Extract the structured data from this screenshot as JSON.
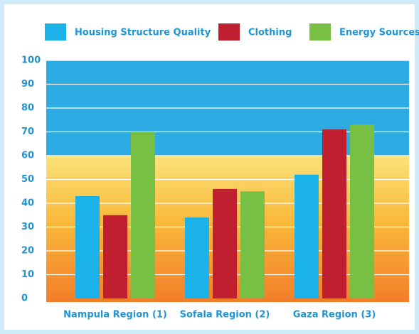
{
  "chart_data": {
    "type": "bar",
    "categories": [
      "Nampula Region (1)",
      "Sofala Region (2)",
      "Gaza Region (3)"
    ],
    "series": [
      {
        "name": "Housing Structure Quality",
        "color": "#1ab2e8",
        "values": [
          43,
          34,
          52
        ]
      },
      {
        "name": "Clothing",
        "color": "#c01f2f",
        "values": [
          35,
          46,
          71
        ]
      },
      {
        "name": "Energy Sources",
        "color": "#78c043",
        "values": [
          70,
          45,
          73
        ]
      }
    ],
    "ylim": [
      0,
      100
    ],
    "yticks": [
      0,
      10,
      20,
      30,
      40,
      50,
      60,
      70,
      80,
      90,
      100
    ],
    "grid": true
  }
}
